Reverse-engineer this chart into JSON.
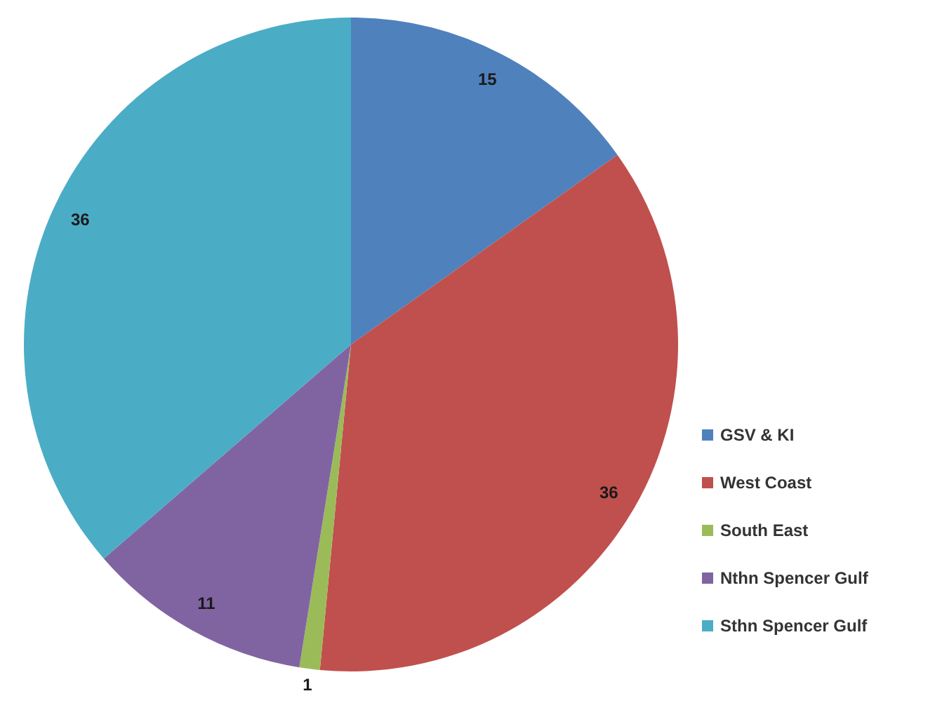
{
  "chart_data": {
    "type": "pie",
    "categories": [
      "GSV & KI",
      "West Coast",
      "South East",
      "Nthn Spencer Gulf",
      "Sthn Spencer Gulf"
    ],
    "values": [
      15,
      36,
      1,
      11,
      36
    ],
    "colors": [
      "#4f81bd",
      "#c0504d",
      "#9bbb59",
      "#8064a2",
      "#4bacc6"
    ],
    "data_labels": true,
    "legend": "right"
  }
}
